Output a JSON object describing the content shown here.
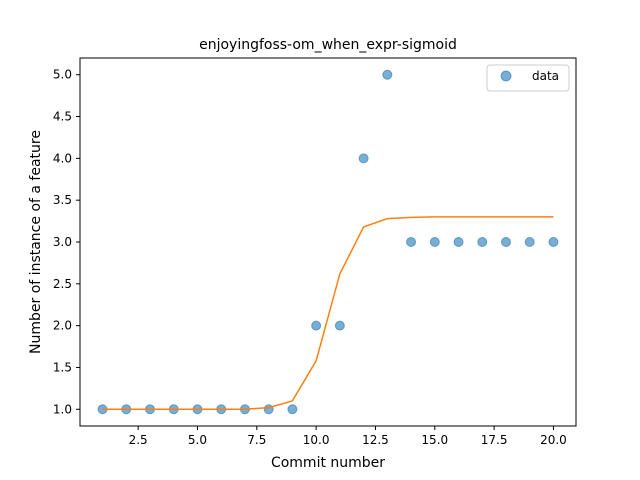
{
  "chart_data": {
    "type": "scatter",
    "title": "enjoyingfoss-om_when_expr-sigmoid",
    "xlabel": "Commit number",
    "ylabel": "Number of instance of a feature",
    "xlim": [
      0.05,
      20.95
    ],
    "ylim": [
      0.8,
      5.2
    ],
    "x_ticks": [
      2.5,
      5.0,
      7.5,
      10.0,
      12.5,
      15.0,
      17.5,
      20.0
    ],
    "x_tick_labels": [
      "2.5",
      "5.0",
      "7.5",
      "10.0",
      "12.5",
      "15.0",
      "17.5",
      "20.0"
    ],
    "y_ticks": [
      1.0,
      1.5,
      2.0,
      2.5,
      3.0,
      3.5,
      4.0,
      4.5,
      5.0
    ],
    "y_tick_labels": [
      "1.0",
      "1.5",
      "2.0",
      "2.5",
      "3.0",
      "3.5",
      "4.0",
      "4.5",
      "5.0"
    ],
    "grid": false,
    "legend": {
      "position": "top-right",
      "entries": [
        "data"
      ]
    },
    "colors": {
      "scatter": "#1f77b4",
      "fit_line": "#ff7f0e"
    },
    "series": [
      {
        "name": "data",
        "kind": "scatter",
        "x": [
          1,
          2,
          3,
          4,
          5,
          6,
          7,
          8,
          9,
          10,
          11,
          12,
          13,
          14,
          15,
          16,
          17,
          18,
          19,
          20
        ],
        "y": [
          1,
          1,
          1,
          1,
          1,
          1,
          1,
          1,
          1,
          2,
          2,
          4,
          5,
          3,
          3,
          3,
          3,
          3,
          3,
          3
        ]
      },
      {
        "kind": "line",
        "x": [
          1,
          2,
          3,
          4,
          5,
          6,
          7,
          8,
          9,
          10,
          11,
          12,
          13,
          14,
          15,
          16,
          17,
          18,
          19,
          20
        ],
        "y": [
          1.0,
          1.0,
          1.0,
          1.0,
          1.0,
          1.0,
          1.0,
          1.02,
          1.1,
          1.58,
          2.62,
          3.18,
          3.28,
          3.295,
          3.3,
          3.3,
          3.3,
          3.3,
          3.3,
          3.3
        ]
      }
    ]
  }
}
